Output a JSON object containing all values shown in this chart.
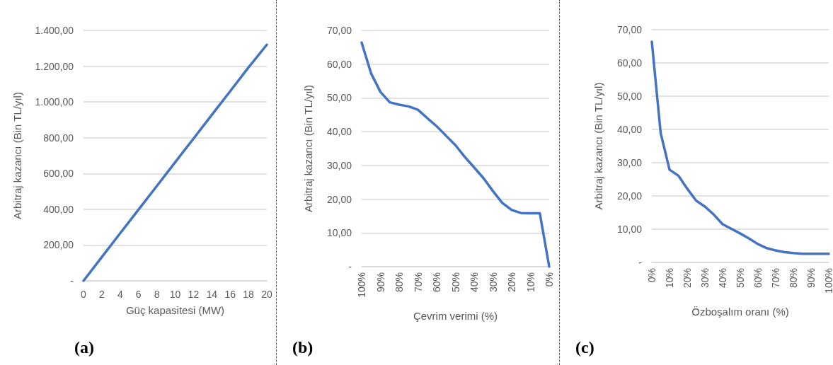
{
  "chart_data": [
    {
      "type": "line",
      "title": "(a)",
      "xlabel": "Güç kapasitesi (MW)",
      "ylabel": "Arbitraj kazancı (Bin TL/yıl)",
      "x": [
        0,
        2,
        4,
        6,
        8,
        10,
        12,
        14,
        16,
        18,
        20
      ],
      "series": [
        {
          "color": "#4472c4",
          "values": [
            0,
            133,
            266,
            398,
            530,
            663,
            795,
            928,
            1060,
            1193,
            1320
          ]
        }
      ],
      "xlim": [
        0,
        20
      ],
      "xticks": [
        0,
        2,
        4,
        6,
        8,
        10,
        12,
        14,
        16,
        18,
        20
      ],
      "ylim": [
        0,
        1400
      ],
      "yticks": [
        {
          "value": 0,
          "label": "-"
        },
        {
          "value": 200,
          "label": "200,00"
        },
        {
          "value": 400,
          "label": "400,00"
        },
        {
          "value": 600,
          "label": "600,00"
        },
        {
          "value": 800,
          "label": "800,00"
        },
        {
          "value": 1000,
          "label": "1.000,00"
        },
        {
          "value": 1200,
          "label": "1.200,00"
        },
        {
          "value": 1400,
          "label": "1.400,00"
        }
      ],
      "grid": "y",
      "marker": "none",
      "line_style": "solid"
    },
    {
      "type": "line",
      "title": "(b)",
      "xlabel": "Çevrim verimi (%)",
      "ylabel": "Arbitraj kazancı (Bin TL/yıl)",
      "categories": [
        "100%",
        null,
        "90%",
        null,
        "80%",
        null,
        "70%",
        null,
        "60%",
        null,
        "50%",
        null,
        "40%",
        null,
        "30%",
        null,
        "20%",
        null,
        "10%",
        null,
        "0%"
      ],
      "series": [
        {
          "color": "#4472c4",
          "values": [
            66.4,
            57.3,
            51.8,
            48.7,
            48.0,
            47.5,
            46.5,
            44.0,
            41.6,
            38.8,
            36.0,
            32.5,
            29.4,
            26.2,
            22.4,
            18.9,
            16.8,
            15.9,
            15.8,
            15.8,
            0
          ]
        }
      ],
      "ylim": [
        0,
        70
      ],
      "yticks": [
        {
          "value": 0,
          "label": "-"
        },
        {
          "value": 10,
          "label": "10,00"
        },
        {
          "value": 20,
          "label": "20,00"
        },
        {
          "value": 30,
          "label": "30,00"
        },
        {
          "value": 40,
          "label": "40,00"
        },
        {
          "value": 50,
          "label": "50,00"
        },
        {
          "value": 60,
          "label": "60,00"
        },
        {
          "value": 70,
          "label": "70,00"
        }
      ],
      "grid": "y",
      "marker": "none",
      "line_style": "solid"
    },
    {
      "type": "line",
      "title": "(c)",
      "xlabel": "Özboşalım oranı (%)",
      "ylabel": "Arbitraj kazancı (Bin TL/yıl)",
      "categories": [
        "0%",
        null,
        "10%",
        null,
        "20%",
        null,
        "30%",
        null,
        "40%",
        null,
        "50%",
        null,
        "60%",
        null,
        "70%",
        null,
        "80%",
        null,
        "90%",
        null,
        "100%"
      ],
      "series": [
        {
          "color": "#4472c4",
          "values": [
            66.4,
            38.9,
            27.9,
            26.1,
            22.2,
            18.6,
            16.8,
            14.4,
            11.5,
            10.1,
            8.7,
            7.2,
            5.5,
            4.3,
            3.6,
            3.1,
            2.8,
            2.6,
            2.6,
            2.6,
            2.6
          ]
        }
      ],
      "ylim": [
        0,
        70
      ],
      "yticks": [
        {
          "value": 0,
          "label": "-"
        },
        {
          "value": 10,
          "label": "10,00"
        },
        {
          "value": 20,
          "label": "20,00"
        },
        {
          "value": 30,
          "label": "30,00"
        },
        {
          "value": 40,
          "label": "40,00"
        },
        {
          "value": 50,
          "label": "50,00"
        },
        {
          "value": 60,
          "label": "60,00"
        },
        {
          "value": 70,
          "label": "70,00"
        }
      ],
      "grid": "y",
      "marker": "none",
      "line_style": "solid"
    }
  ]
}
